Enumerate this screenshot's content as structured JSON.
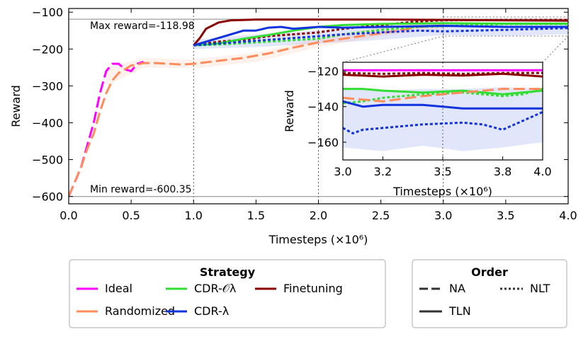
{
  "colors": {
    "Ideal": "#ff00ff",
    "Randomized": "#ff8c5a",
    "CDR-Oλ": "#33dd33",
    "CDR-λ": "#1133dd",
    "Finetuning": "#8b0000"
  },
  "chart_data": [
    {
      "type": "line",
      "xlabel": "Timesteps (×10⁶)",
      "ylabel": "Reward",
      "xlim": [
        0.0,
        4.0
      ],
      "ylim": [
        -620,
        -90
      ],
      "xticks": [
        "0.0",
        "0.5",
        "1.0",
        "1.5",
        "2.0",
        "2.5",
        "3.0",
        "3.5",
        "4.0"
      ],
      "yticks": [
        "−100",
        "−200",
        "−300",
        "−400",
        "−500",
        "−600"
      ],
      "max_label": "Max reward=-118.98",
      "min_label": "Min reward=-600.35",
      "max_reward": -118.98,
      "min_reward": -600.35,
      "vlines": [
        1.0,
        2.0,
        3.0
      ],
      "series": [
        {
          "name": "Ideal",
          "order": "NA",
          "x": [
            0,
            0.05,
            0.1,
            0.15,
            0.2,
            0.25,
            0.3,
            0.35,
            0.4,
            0.45,
            0.5,
            0.55,
            0.6
          ],
          "y": [
            -600,
            -560,
            -520,
            -460,
            -400,
            -320,
            -260,
            -240,
            -240,
            -255,
            -260,
            -240,
            -235
          ]
        },
        {
          "name": "Randomized",
          "order": "NA",
          "x": [
            0,
            0.05,
            0.1,
            0.15,
            0.2,
            0.25,
            0.3,
            0.35,
            0.4,
            0.5,
            0.6,
            0.7,
            0.8,
            0.9,
            1.0,
            1.2,
            1.4,
            1.6,
            1.8,
            2.0,
            2.2,
            2.4,
            2.6,
            2.8,
            3.0
          ],
          "y": [
            -600,
            -560,
            -520,
            -470,
            -430,
            -370,
            -320,
            -285,
            -265,
            -245,
            -238,
            -238,
            -240,
            -242,
            -240,
            -232,
            -224,
            -212,
            -196,
            -182,
            -172,
            -162,
            -152,
            -140,
            -136
          ]
        },
        {
          "name": "Finetuning",
          "order": "TLN",
          "x": [
            1.0,
            1.05,
            1.1,
            1.2,
            1.3,
            1.5,
            2.0,
            2.5,
            3.0,
            3.5,
            4.0
          ],
          "y": [
            -190,
            -170,
            -145,
            -128,
            -122,
            -120,
            -120,
            -120,
            -121,
            -122,
            -123
          ]
        },
        {
          "name": "Finetuning",
          "order": "NLT",
          "x": [
            1.0,
            1.2,
            1.4,
            1.6,
            1.8,
            2.0,
            2.2,
            2.5,
            2.8,
            3.0,
            3.5,
            4.0
          ],
          "y": [
            -190,
            -180,
            -175,
            -165,
            -160,
            -155,
            -145,
            -135,
            -125,
            -122,
            -121,
            -121
          ]
        },
        {
          "name": "CDR-Oλ",
          "order": "TLN",
          "x": [
            1.0,
            1.2,
            1.4,
            1.6,
            1.8,
            2.0,
            2.2,
            2.5,
            3.0,
            3.5,
            4.0
          ],
          "y": [
            -190,
            -185,
            -172,
            -162,
            -150,
            -140,
            -135,
            -132,
            -130,
            -131,
            -131
          ]
        },
        {
          "name": "CDR-Oλ",
          "order": "NLT",
          "x": [
            1.0,
            1.2,
            1.5,
            2.0,
            2.2,
            2.5,
            2.8,
            3.0,
            3.5,
            4.0
          ],
          "y": [
            -190,
            -188,
            -182,
            -172,
            -160,
            -148,
            -140,
            -138,
            -132,
            -132
          ]
        },
        {
          "name": "CDR-λ",
          "order": "TLN",
          "x": [
            1.0,
            1.1,
            1.2,
            1.3,
            1.4,
            1.5,
            1.6,
            1.7,
            1.8,
            2.0,
            2.2,
            2.5,
            3.0,
            3.5,
            4.0
          ],
          "y": [
            -190,
            -180,
            -170,
            -160,
            -150,
            -150,
            -142,
            -140,
            -145,
            -140,
            -142,
            -140,
            -137,
            -140,
            -140
          ]
        },
        {
          "name": "CDR-λ",
          "order": "NLT",
          "x": [
            1.0,
            1.2,
            1.4,
            1.6,
            1.8,
            2.0,
            2.2,
            2.5,
            2.8,
            3.0,
            3.5,
            4.0
          ],
          "y": [
            -190,
            -185,
            -180,
            -175,
            -170,
            -165,
            -160,
            -155,
            -150,
            -152,
            -148,
            -143
          ]
        }
      ],
      "bands": [
        {
          "name": "CDR-λ",
          "x": [
            1.0,
            1.5,
            2.0,
            2.5,
            3.0,
            3.5,
            4.0
          ],
          "low": [
            -200,
            -195,
            -185,
            -175,
            -162,
            -165,
            -160
          ],
          "high": [
            -175,
            -160,
            -150,
            -140,
            -132,
            -130,
            -128
          ]
        },
        {
          "name": "Randomized",
          "x": [
            0.3,
            0.6,
            1.0,
            1.5,
            2.0,
            2.5,
            3.0
          ],
          "low": [
            -300,
            -250,
            -252,
            -235,
            -195,
            -165,
            -145
          ],
          "high": [
            -250,
            -225,
            -228,
            -210,
            -170,
            -140,
            -128
          ]
        }
      ]
    },
    {
      "type": "line",
      "xlabel": "Timesteps (×10⁶)",
      "ylabel": "Reward",
      "xlim": [
        3.0,
        4.0
      ],
      "ylim": [
        -170,
        -115
      ],
      "xticks": [
        "3.0",
        "3.2",
        "3.5",
        "3.8",
        "4.0"
      ],
      "xtick_values": [
        3.0,
        3.2,
        3.5,
        3.8,
        4.0
      ],
      "yticks": [
        "120",
        "140",
        "160"
      ],
      "ytick_values": [
        -120,
        -140,
        -160
      ],
      "vlines": [
        3.5
      ],
      "series": [
        {
          "name": "Ideal",
          "order": "TLN",
          "x": [
            3.0,
            4.0
          ],
          "y": [
            -119.5,
            -119.5
          ]
        },
        {
          "name": "Finetuning",
          "order": "NLT",
          "x": [
            3.0,
            3.2,
            3.4,
            3.6,
            3.8,
            4.0
          ],
          "y": [
            -121,
            -121.5,
            -121,
            -121.5,
            -121,
            -121
          ]
        },
        {
          "name": "Finetuning",
          "order": "TLN",
          "x": [
            3.0,
            3.2,
            3.4,
            3.6,
            3.8,
            4.0
          ],
          "y": [
            -122,
            -123,
            -122,
            -122.5,
            -121.5,
            -123
          ]
        },
        {
          "name": "CDR-Oλ",
          "order": "TLN",
          "x": [
            3.0,
            3.1,
            3.2,
            3.4,
            3.6,
            3.8,
            4.0
          ],
          "y": [
            -130,
            -130,
            -131,
            -132,
            -131,
            -133,
            -131
          ]
        },
        {
          "name": "CDR-Oλ",
          "order": "NLT",
          "x": [
            3.0,
            3.1,
            3.2,
            3.4,
            3.6,
            3.8,
            3.9,
            4.0
          ],
          "y": [
            -138,
            -137,
            -135,
            -133,
            -132,
            -134,
            -133,
            -130
          ]
        },
        {
          "name": "Randomized",
          "order": "NA",
          "x": [
            3.0,
            3.2,
            3.4,
            3.6,
            3.8,
            4.0
          ],
          "y": [
            -135,
            -137,
            -134,
            -132,
            -130,
            -130
          ]
        },
        {
          "name": "CDR-λ",
          "order": "TLN",
          "x": [
            3.0,
            3.1,
            3.2,
            3.4,
            3.6,
            3.8,
            4.0
          ],
          "y": [
            -137,
            -140,
            -139,
            -139,
            -141,
            -141,
            -141
          ]
        },
        {
          "name": "CDR-λ",
          "order": "NLT",
          "x": [
            3.0,
            3.05,
            3.1,
            3.2,
            3.4,
            3.6,
            3.7,
            3.8,
            3.9,
            4.0
          ],
          "y": [
            -152,
            -155,
            -153,
            -152,
            -150,
            -149,
            -150,
            -153,
            -148,
            -143
          ]
        }
      ],
      "bands": [
        {
          "name": "CDR-λ",
          "x": [
            3.0,
            3.2,
            3.4,
            3.6,
            3.8,
            4.0
          ],
          "low": [
            -163,
            -165,
            -162,
            -165,
            -163,
            -160
          ],
          "high": [
            -130,
            -131,
            -130,
            -130,
            -129,
            -130
          ]
        }
      ]
    }
  ],
  "legend_strategy": {
    "title": "Strategy",
    "items": [
      {
        "label": "Ideal",
        "series": "Ideal"
      },
      {
        "label": "Randomized",
        "series": "Randomized"
      },
      {
        "label": "CDR-𝒪λ",
        "series": "CDR-Oλ"
      },
      {
        "label": "CDR-λ",
        "series": "CDR-λ"
      },
      {
        "label": "Finetuning",
        "series": "Finetuning"
      }
    ]
  },
  "legend_order": {
    "title": "Order",
    "items": [
      {
        "label": "NA",
        "dash": "na"
      },
      {
        "label": "NLT",
        "dash": "nlt"
      },
      {
        "label": "TLN",
        "dash": "tln"
      }
    ]
  }
}
